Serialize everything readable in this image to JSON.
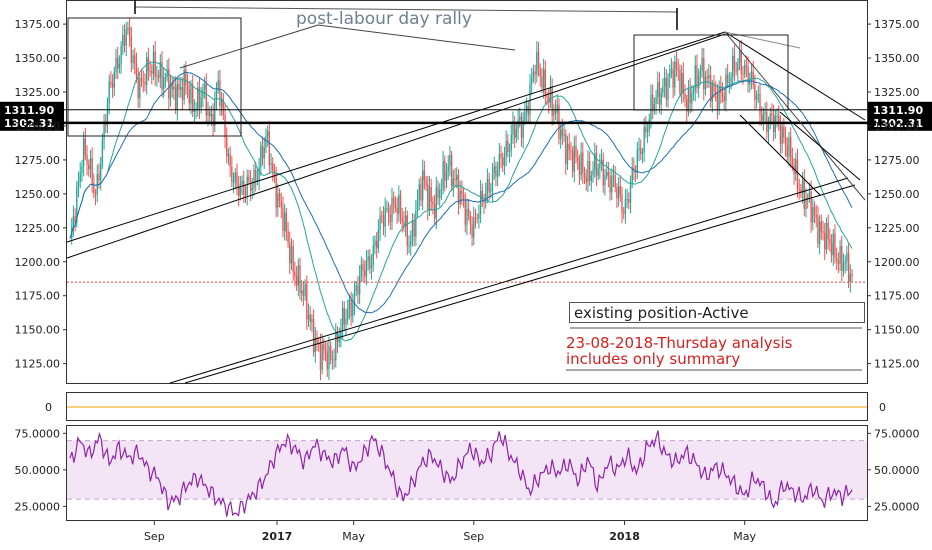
{
  "chart_data": [
    {
      "type": "candlestick",
      "title": "",
      "xlabel": "",
      "ylabel": "",
      "x_tick_labels": [
        "Sep",
        "2017",
        "May",
        "Sep",
        "2018",
        "May"
      ],
      "y_ticks": [
        1125,
        1150,
        1175,
        1200,
        1225,
        1250,
        1275,
        1300,
        1325,
        1350,
        1375
      ],
      "y_tick_labels": [
        "1125.00",
        "1150.00",
        "1175.00",
        "1200.00",
        "1225.00",
        "1250.00",
        "1275.00",
        "1300.00",
        "1325.00",
        "1350.00",
        "1375.00"
      ],
      "ylim": [
        1110,
        1392
      ],
      "grid": false,
      "price_levels": [
        {
          "label": "1311.90",
          "value": 1311.9
        },
        {
          "label": "1302.31",
          "value": 1302.31
        }
      ],
      "current_price_line": 1185,
      "annotations": [
        {
          "text": "post-labour day rally",
          "color": "#708090"
        },
        {
          "text": "existing position-Active",
          "color": "#222222"
        },
        {
          "text": "23-08-2018-Thursday analysis",
          "color": "#d62020"
        },
        {
          "text": "includes only summary",
          "color": "#d62020"
        }
      ],
      "close_path": [
        [
          2016.45,
          1210
        ],
        [
          2016.5,
          1285
        ],
        [
          2016.55,
          1250
        ],
        [
          2016.6,
          1320
        ],
        [
          2016.63,
          1345
        ],
        [
          2016.67,
          1370
        ],
        [
          2016.72,
          1330
        ],
        [
          2016.78,
          1345
        ],
        [
          2016.85,
          1325
        ],
        [
          2016.9,
          1330
        ],
        [
          2016.93,
          1315
        ],
        [
          2016.97,
          1325
        ],
        [
          2017.0,
          1300
        ],
        [
          2017.03,
          1335
        ],
        [
          2017.07,
          1270
        ],
        [
          2017.13,
          1250
        ],
        [
          2017.18,
          1265
        ],
        [
          2017.22,
          1290
        ],
        [
          2017.26,
          1250
        ],
        [
          2017.32,
          1200
        ],
        [
          2017.37,
          1170
        ],
        [
          2017.43,
          1130
        ],
        [
          2017.47,
          1130
        ],
        [
          2017.53,
          1160
        ],
        [
          2017.58,
          1185
        ],
        [
          2017.63,
          1205
        ],
        [
          2017.67,
          1230
        ],
        [
          2017.72,
          1245
        ],
        [
          2017.78,
          1215
        ],
        [
          2017.83,
          1260
        ],
        [
          2017.88,
          1240
        ],
        [
          2017.93,
          1275
        ],
        [
          2017.97,
          1250
        ],
        [
          2018.03,
          1225
        ],
        [
          2018.08,
          1255
        ],
        [
          2018.13,
          1270
        ],
        [
          2018.18,
          1295
        ],
        [
          2018.22,
          1300
        ],
        [
          2018.27,
          1345
        ],
        [
          2018.32,
          1325
        ],
        [
          2018.37,
          1295
        ],
        [
          2018.42,
          1275
        ],
        [
          2018.48,
          1265
        ],
        [
          2018.53,
          1270
        ],
        [
          2018.58,
          1255
        ],
        [
          2018.62,
          1240
        ],
        [
          2018.67,
          1275
        ],
        [
          2018.72,
          1310
        ],
        [
          2018.77,
          1330
        ],
        [
          2018.83,
          1340
        ],
        [
          2018.87,
          1315
        ],
        [
          2018.92,
          1345
        ],
        [
          2018.97,
          1320
        ],
        [
          2019.02,
          1330
        ],
        [
          2019.07,
          1350
        ],
        [
          2019.13,
          1325
        ],
        [
          2019.18,
          1300
        ],
        [
          2019.22,
          1305
        ],
        [
          2019.27,
          1275
        ],
        [
          2019.32,
          1250
        ],
        [
          2019.37,
          1230
        ],
        [
          2019.43,
          1210
        ],
        [
          2019.48,
          1200
        ],
        [
          2019.51,
          1185
        ]
      ]
    },
    {
      "type": "line",
      "title": "",
      "y_ticks": [
        0
      ],
      "y_tick_labels": [
        "0"
      ],
      "ylim": [
        -1,
        1
      ],
      "series": [
        {
          "values": [
            0,
            0
          ]
        }
      ]
    },
    {
      "type": "line",
      "title": "",
      "y_ticks": [
        25,
        50,
        75
      ],
      "y_tick_labels": [
        "25.0000",
        "50.0000",
        "75.0000"
      ],
      "ylim": [
        15,
        80
      ],
      "band": [
        30,
        70
      ],
      "series": [
        {
          "values": [
            55,
            70,
            60,
            72,
            55,
            65,
            58,
            62,
            50,
            45,
            28,
            30,
            40,
            45,
            38,
            30,
            25,
            20,
            28,
            35,
            45,
            60,
            70,
            65,
            55,
            68,
            60,
            55,
            65,
            50,
            60,
            72,
            60,
            45,
            30,
            40,
            55,
            60,
            50,
            42,
            55,
            65,
            55,
            60,
            75,
            60,
            50,
            35,
            45,
            52,
            48,
            55,
            42,
            58,
            38,
            55,
            50,
            60,
            48,
            65,
            72,
            60,
            55,
            62,
            55,
            45,
            52,
            48,
            40,
            32,
            45,
            38,
            25,
            40,
            35,
            30,
            38,
            28,
            35,
            32,
            36
          ]
        }
      ]
    }
  ],
  "colors": {
    "bull": "#26a69a",
    "bear": "#ef5350",
    "ma": "#1f6fb5",
    "rsi": "#8e24aa",
    "rsi_band": "#f3e5f5",
    "zero_line": "#f0a000",
    "price_line": "#ef3b3b",
    "tag_bg": "#000000"
  },
  "ui": {
    "rally_label": "post-labour day rally",
    "position_label": "existing position-Active",
    "date_note_line1": "23-08-2018-Thursday analysis",
    "date_note_line2": "includes only summary"
  }
}
